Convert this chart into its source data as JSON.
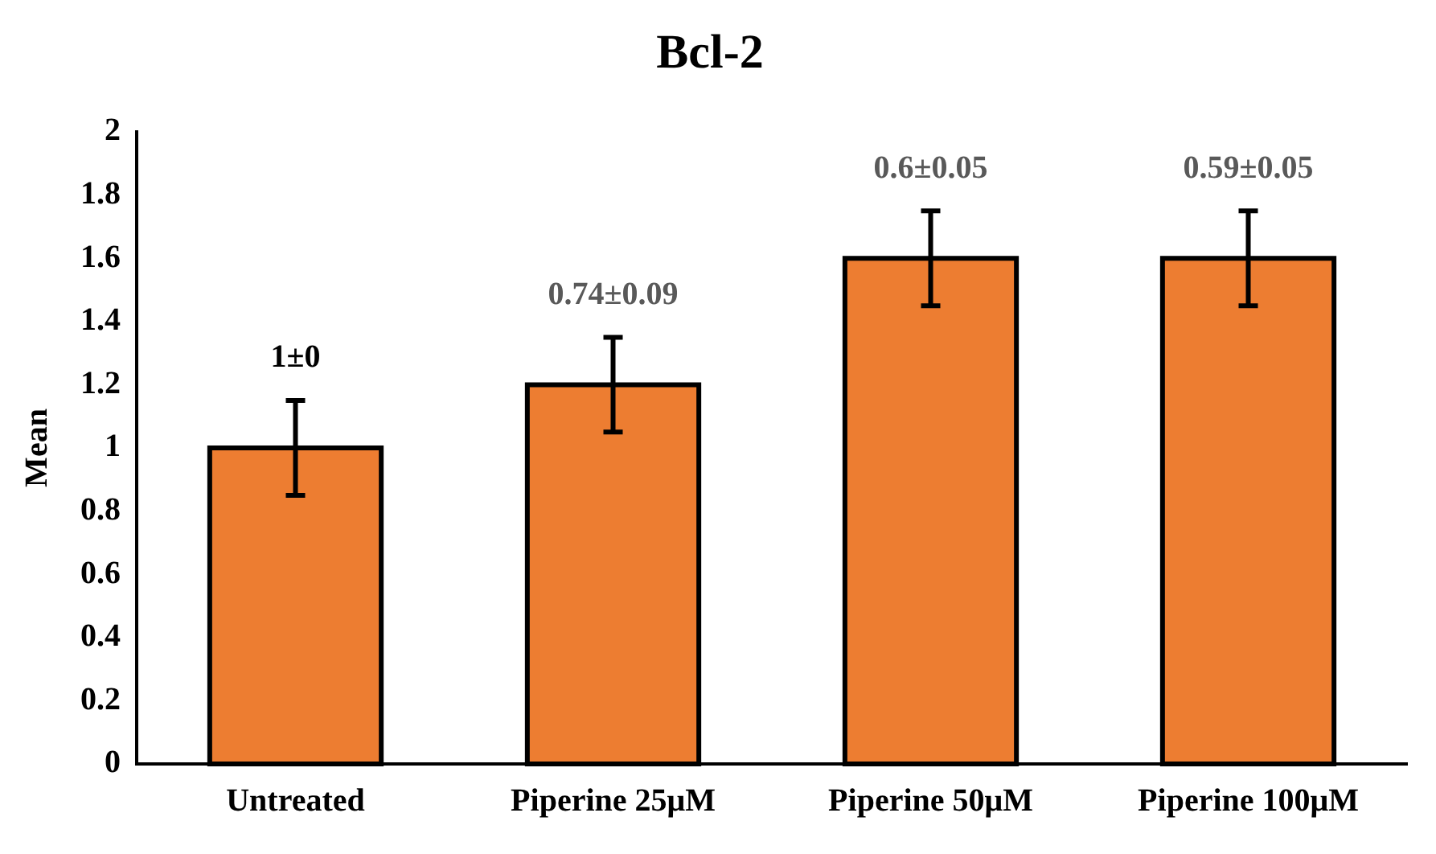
{
  "chart_data": {
    "type": "bar",
    "title": "Bcl-2",
    "ylabel": "Mean",
    "categories": [
      "Untreated",
      "Piperine 25μM",
      "Piperine 50μM",
      "Piperine 100μM"
    ],
    "values": [
      1.0,
      1.2,
      1.6,
      1.6
    ],
    "errors": [
      0.15,
      0.15,
      0.15,
      0.15
    ],
    "annotations": [
      {
        "text": "1±0",
        "x": "Untreated",
        "y": 1.15
      },
      {
        "text": "0.74±0.09",
        "x": "Piperine 25μM",
        "y": 1.35
      },
      {
        "text": "0.6±0.05",
        "x": "Piperine 50μM",
        "y": 1.75
      },
      {
        "text": "0.59±0.05",
        "x": "Piperine 100μM",
        "y": 1.75
      }
    ],
    "color": "#ed7d31",
    "ylim": [
      0,
      2
    ],
    "yticks": [
      0,
      0.2,
      0.4,
      0.6,
      0.8,
      1,
      1.2,
      1.4,
      1.6,
      1.8,
      2
    ],
    "grid": false,
    "legend": false
  }
}
